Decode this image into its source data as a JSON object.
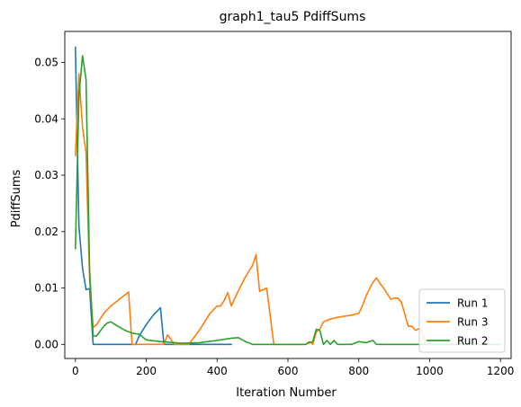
{
  "chart_data": {
    "type": "line",
    "title": "graph1_tau5 PdiffSums",
    "xlabel": "Iteration Number",
    "ylabel": "PdiffSums",
    "xlim": [
      -30,
      1230
    ],
    "ylim": [
      -0.0025,
      0.0555
    ],
    "xticks": [
      0,
      200,
      400,
      600,
      800,
      1000,
      1200
    ],
    "xtick_labels": [
      "0",
      "200",
      "400",
      "600",
      "800",
      "1000",
      "1200"
    ],
    "yticks": [
      0.0,
      0.01,
      0.02,
      0.03,
      0.04,
      0.05
    ],
    "ytick_labels": [
      "0.00",
      "0.01",
      "0.02",
      "0.03",
      "0.04",
      "0.05"
    ],
    "grid": false,
    "legend_position": "lower-right",
    "series": [
      {
        "name": "Run 1",
        "color": "#1f77b4",
        "x": [
          0,
          10,
          20,
          30,
          40,
          50,
          60,
          80,
          100,
          120,
          140,
          160,
          170,
          180,
          200,
          220,
          240,
          250,
          260,
          300,
          350,
          400,
          440
        ],
        "y": [
          0.0527,
          0.021,
          0.0135,
          0.0097,
          0.0099,
          0.0,
          0.0,
          0.0,
          0.0,
          0.0,
          0.0,
          0.0,
          0.0,
          0.0015,
          0.0035,
          0.0052,
          0.0065,
          0.0,
          0.0,
          0.0,
          0.0,
          0.0,
          0.0
        ]
      },
      {
        "name": "Run 3",
        "color": "#ff7f0e",
        "x": [
          0,
          10,
          20,
          30,
          40,
          50,
          60,
          80,
          100,
          120,
          140,
          150,
          160,
          170,
          200,
          240,
          250,
          260,
          280,
          300,
          320,
          350,
          380,
          400,
          410,
          420,
          430,
          440,
          460,
          480,
          500,
          510,
          520,
          530,
          540,
          560,
          600,
          650,
          660,
          670,
          680,
          690,
          700,
          720,
          740,
          760,
          780,
          800,
          810,
          820,
          830,
          840,
          850,
          860,
          870,
          880,
          890,
          900,
          910,
          920,
          940,
          950,
          960,
          970,
          980,
          990,
          1000,
          1020,
          1040,
          1060,
          1080
        ],
        "y": [
          0.0335,
          0.048,
          0.0385,
          0.034,
          0.0115,
          0.003,
          0.0035,
          0.0055,
          0.0068,
          0.0078,
          0.0088,
          0.0093,
          0.0,
          0.0,
          0.0,
          0.0,
          0.0,
          0.0017,
          0.0,
          0.0,
          0.0,
          0.0025,
          0.0055,
          0.0068,
          0.0068,
          0.0078,
          0.0092,
          0.0068,
          0.0095,
          0.012,
          0.014,
          0.0159,
          0.0094,
          0.0097,
          0.01,
          0.0,
          0.0,
          0.0,
          0.0005,
          0.0,
          0.0022,
          0.0027,
          0.004,
          0.0045,
          0.0048,
          0.005,
          0.0052,
          0.0055,
          0.0068,
          0.0085,
          0.0098,
          0.011,
          0.0118,
          0.0108,
          0.01,
          0.009,
          0.008,
          0.0082,
          0.0082,
          0.0075,
          0.0032,
          0.0032,
          0.0025,
          0.0028,
          0.002,
          0.0,
          0.0,
          0.0,
          0.0,
          0.0,
          0.0
        ]
      },
      {
        "name": "Run 2",
        "color": "#2ca02c",
        "x": [
          0,
          10,
          20,
          30,
          40,
          50,
          60,
          80,
          90,
          100,
          120,
          140,
          160,
          180,
          200,
          240,
          300,
          350,
          400,
          440,
          460,
          480,
          500,
          540,
          600,
          650,
          660,
          670,
          680,
          690,
          700,
          710,
          720,
          730,
          740,
          760,
          780,
          800,
          820,
          840,
          850,
          860,
          900,
          950,
          1000,
          1050,
          1100,
          1150,
          1200
        ],
        "y": [
          0.017,
          0.044,
          0.0512,
          0.047,
          0.013,
          0.0015,
          0.0015,
          0.0032,
          0.0038,
          0.004,
          0.0032,
          0.0025,
          0.002,
          0.0018,
          0.0008,
          0.0005,
          0.0002,
          0.0003,
          0.0007,
          0.0011,
          0.0012,
          0.0005,
          0.0,
          0.0,
          0.0,
          0.0,
          0.0003,
          0.0005,
          0.0027,
          0.0025,
          0.0,
          0.0007,
          0.0,
          0.0007,
          0.0,
          0.0,
          0.0,
          0.0005,
          0.0003,
          0.0007,
          0.0,
          0.0,
          0.0,
          0.0,
          0.0,
          0.0,
          0.0,
          0.0,
          0.0
        ]
      }
    ]
  }
}
